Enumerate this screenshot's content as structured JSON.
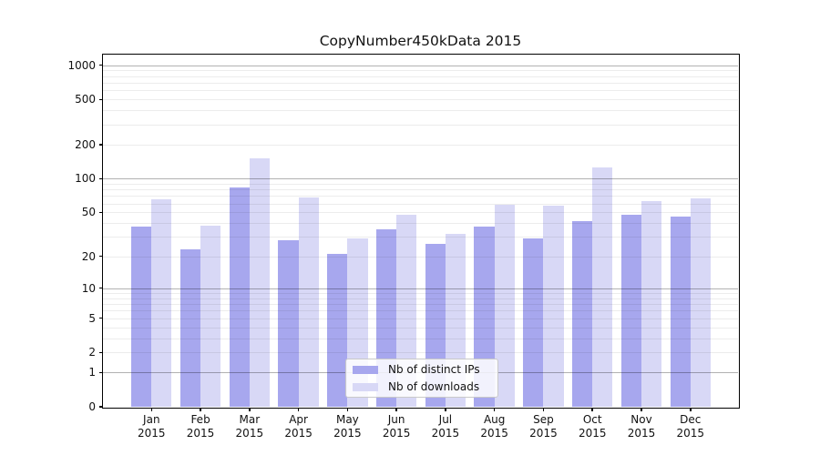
{
  "title": "CopyNumber450kData 2015",
  "colors": {
    "distinct_ips": "#a7a7ee",
    "downloads": "#d8d8f6",
    "major_grid": "#b4b4b4",
    "minor_grid": "#e9e9e9",
    "spine": "#000000",
    "background": "#ffffff",
    "text": "#111111"
  },
  "legend": {
    "items": [
      {
        "label": "Nb of distinct IPs"
      },
      {
        "label": "Nb of downloads"
      }
    ]
  },
  "chart_data": {
    "type": "bar",
    "title": "CopyNumber450kData 2015",
    "categories": [
      "Jan 2015",
      "Feb 2015",
      "Mar 2015",
      "Apr 2015",
      "May 2015",
      "Jun 2015",
      "Jul 2015",
      "Aug 2015",
      "Sep 2015",
      "Oct 2015",
      "Nov 2015",
      "Dec 2015"
    ],
    "series": [
      {
        "name": "Nb of distinct IPs",
        "color": "#a7a7ee",
        "values": [
          37,
          23,
          84,
          28,
          21,
          35,
          26,
          37,
          29,
          42,
          48,
          46
        ]
      },
      {
        "name": "Nb of downloads",
        "color": "#d8d8f6",
        "values": [
          65,
          38,
          150,
          68,
          29,
          48,
          32,
          58,
          57,
          125,
          63,
          67
        ]
      }
    ],
    "xlabel": "",
    "ylabel": "",
    "yscale": "log10(1+v)",
    "yticks": [
      0,
      1,
      2,
      5,
      10,
      20,
      50,
      100,
      200,
      500,
      1000
    ],
    "ylim": [
      0,
      1240
    ],
    "grid": "major and minor horizontal, drawn over bars",
    "legend_position": "lower center"
  }
}
